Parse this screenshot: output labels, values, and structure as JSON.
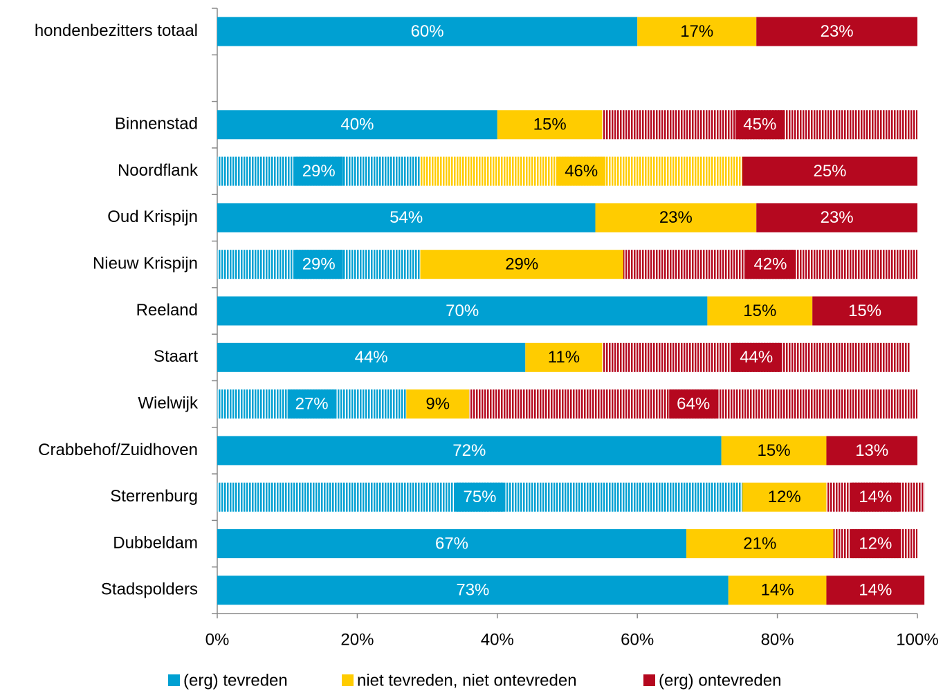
{
  "chart_data": {
    "type": "stacked_barh",
    "categories": [
      "hondenbezitters totaal",
      null,
      "Binnenstad",
      "Noordflank",
      "Oud Krispijn",
      "Nieuw Krispijn",
      "Reeland",
      "Staart",
      "Wielwijk",
      "Crabbehof/Zuidhoven",
      "Sterrenburg",
      "Dubbeldam",
      "Stadspolders"
    ],
    "series": [
      {
        "name": "(erg) tevreden",
        "color": "#00a0d2",
        "label_color": "#ffffff",
        "values": [
          60,
          null,
          40,
          29,
          54,
          29,
          70,
          44,
          27,
          72,
          75,
          67,
          73
        ],
        "value_labels": [
          "60%",
          null,
          "40%",
          "29%",
          "54%",
          "29%",
          "70%",
          "44%",
          "27%",
          "72%",
          "75%",
          "67%",
          "73%"
        ],
        "hatched": [
          false,
          null,
          false,
          true,
          false,
          true,
          false,
          false,
          true,
          false,
          true,
          false,
          false
        ]
      },
      {
        "name": "niet tevreden, niet ontevreden",
        "color": "#ffcc00",
        "label_color": "#000000",
        "values": [
          17,
          null,
          15,
          46,
          23,
          29,
          15,
          11,
          9,
          15,
          12,
          21,
          14
        ],
        "value_labels": [
          "17%",
          null,
          "15%",
          "46%",
          "23%",
          "29%",
          "15%",
          "11%",
          "9%",
          "15%",
          "12%",
          "21%",
          "14%"
        ],
        "hatched": [
          false,
          null,
          false,
          true,
          false,
          false,
          false,
          false,
          false,
          false,
          false,
          false,
          false
        ]
      },
      {
        "name": "(erg) ontevreden",
        "color": "#b5081f",
        "label_color": "#ffffff",
        "values": [
          23,
          null,
          45,
          25,
          23,
          42,
          15,
          44,
          64,
          13,
          14,
          12,
          14
        ],
        "value_labels": [
          "23%",
          null,
          "45%",
          "25%",
          "23%",
          "42%",
          "15%",
          "44%",
          "64%",
          "13%",
          "14%",
          "12%",
          "14%"
        ],
        "hatched": [
          false,
          null,
          true,
          false,
          false,
          true,
          false,
          true,
          true,
          false,
          true,
          true,
          false
        ]
      }
    ],
    "xlim": [
      0,
      100
    ],
    "xticks": [
      {
        "value": 0,
        "label": "0%"
      },
      {
        "value": 20,
        "label": "20%"
      },
      {
        "value": 40,
        "label": "40%"
      },
      {
        "value": 60,
        "label": "60%"
      },
      {
        "value": 80,
        "label": "80%"
      },
      {
        "value": 100,
        "label": "100%"
      }
    ],
    "legend": "bottom"
  }
}
